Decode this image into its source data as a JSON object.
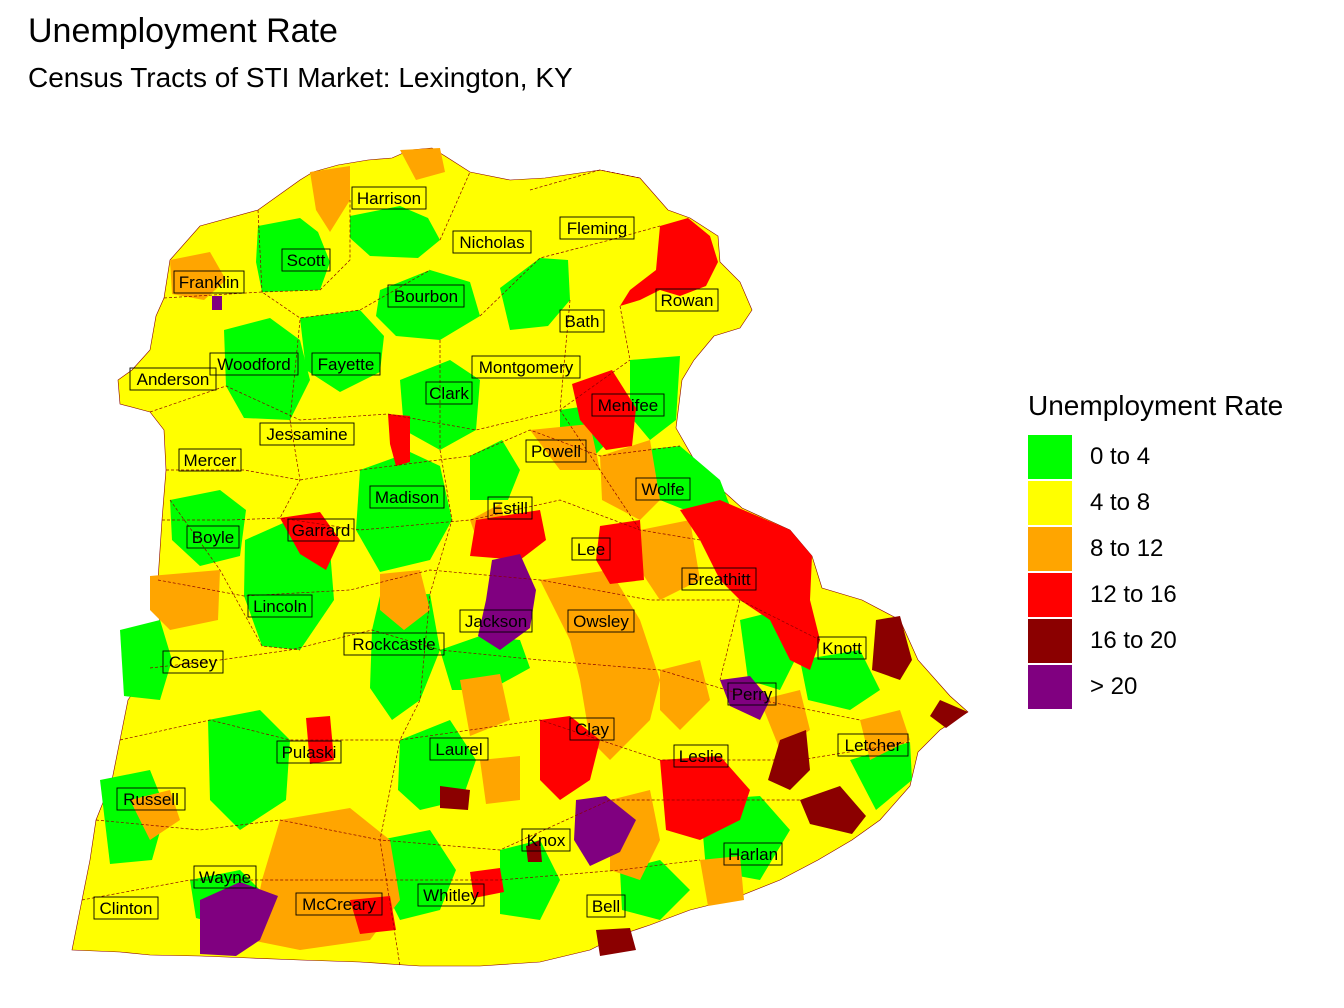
{
  "title": "Unemployment Rate",
  "subtitle": "Census Tracts of STI Market: Lexington, KY",
  "legend": {
    "title": "Unemployment Rate",
    "items": [
      {
        "label": "0 to 4",
        "color": "#00ff00"
      },
      {
        "label": "4 to 8",
        "color": "#ffff00"
      },
      {
        "label": "8 to 12",
        "color": "#ffa500"
      },
      {
        "label": "12 to 16",
        "color": "#ff0000"
      },
      {
        "label": "16 to 20",
        "color": "#8b0000"
      },
      {
        "label": "> 20",
        "color": "#800080"
      }
    ]
  },
  "counties": [
    "Harrison",
    "Fleming",
    "Nicholas",
    "Scott",
    "Franklin",
    "Bourbon",
    "Rowan",
    "Bath",
    "Woodford",
    "Fayette",
    "Anderson",
    "Montgomery",
    "Clark",
    "Menifee",
    "Jessamine",
    "Mercer",
    "Powell",
    "Madison",
    "Wolfe",
    "Estill",
    "Boyle",
    "Garrard",
    "Lee",
    "Breathitt",
    "Lincoln",
    "Jackson",
    "Owsley",
    "Rockcastle",
    "Knott",
    "Casey",
    "Perry",
    "Clay",
    "Pulaski",
    "Laurel",
    "Leslie",
    "Letcher",
    "Russell",
    "Knox",
    "Harlan",
    "Wayne",
    "McCreary",
    "Whitley",
    "Bell",
    "Clinton"
  ]
}
